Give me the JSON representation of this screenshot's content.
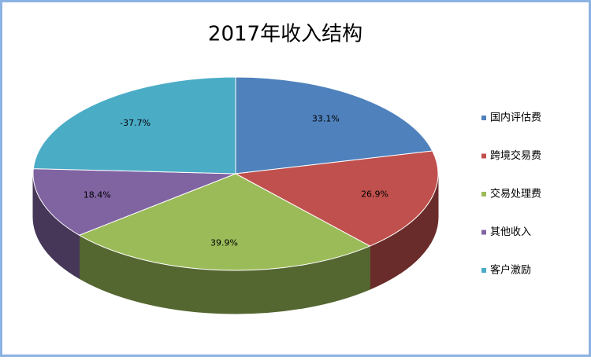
{
  "chart_data": {
    "type": "pie3d",
    "title": "2017年收入结构",
    "categories": [
      "国内评估费",
      "跨境交易费",
      "交易处理费",
      "其他收入",
      "客户激励"
    ],
    "values": [
      33.1,
      26.9,
      39.9,
      18.4,
      -37.7
    ],
    "value_labels": [
      "33.1%",
      "26.9%",
      "39.9%",
      "18.4%",
      "-37.7%"
    ],
    "colors": [
      "#4f81bd",
      "#c0504d",
      "#9bbb59",
      "#8064a2",
      "#4bacc6"
    ],
    "legend": "right"
  }
}
